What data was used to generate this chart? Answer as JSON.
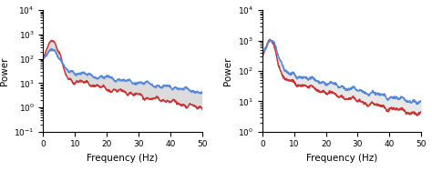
{
  "xlim": [
    0,
    50
  ],
  "ylim_left": [
    0.1,
    10000
  ],
  "ylim_right": [
    1,
    10000
  ],
  "xlabel": "Frequency (Hz)",
  "ylabel": "Power",
  "xticks": [
    0,
    10,
    20,
    30,
    40,
    50
  ],
  "blue_color": "#5588dd",
  "red_color": "#cc3333",
  "gray_color": "#b0b0b0",
  "bg_color": "#ffffff",
  "linewidth": 1.1,
  "seed": 42
}
